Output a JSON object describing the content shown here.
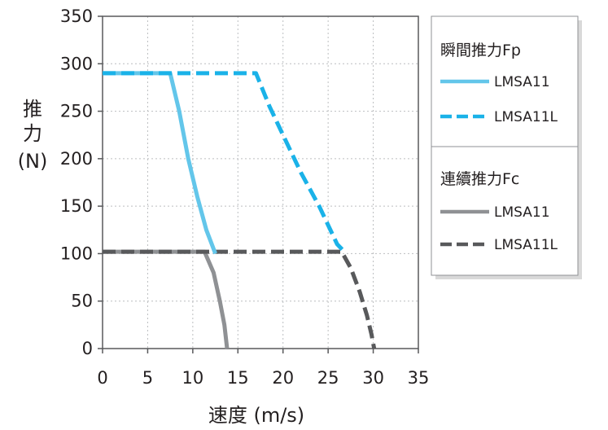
{
  "chart_data": {
    "type": "line",
    "xlabel": "速度 (m/s)",
    "ylabel_chars": [
      "推",
      "力",
      "(N)"
    ],
    "xlim": [
      0,
      35
    ],
    "ylim": [
      0,
      350
    ],
    "xticks": [
      0,
      5,
      10,
      15,
      20,
      25,
      30,
      35
    ],
    "yticks": [
      0,
      50,
      100,
      150,
      200,
      250,
      300,
      350
    ],
    "grid": true,
    "legend_position": "right",
    "legend_groups": [
      {
        "title": "瞬間推力Fp",
        "series_indices": [
          0,
          1
        ]
      },
      {
        "title": "連續推力Fc",
        "series_indices": [
          2,
          3
        ]
      }
    ],
    "series": [
      {
        "name": "LMSA11",
        "color": "#63c6ea",
        "dashed": false,
        "x": [
          0,
          7.5,
          8.5,
          9.5,
          10.5,
          11.5,
          12.5
        ],
        "y": [
          290,
          290,
          250,
          200,
          160,
          125,
          100
        ]
      },
      {
        "name": "LMSA11L",
        "color": "#1ab2e8",
        "dashed": true,
        "x": [
          0,
          17,
          18.5,
          20,
          22,
          24,
          26,
          27
        ],
        "y": [
          290,
          290,
          255,
          225,
          185,
          150,
          110,
          100
        ]
      },
      {
        "name": "LMSA11",
        "color": "#8f9194",
        "dashed": false,
        "x": [
          0,
          11.3,
          12.3,
          13,
          13.5,
          13.8
        ],
        "y": [
          102,
          102,
          80,
          50,
          25,
          0
        ]
      },
      {
        "name": "LMSA11L",
        "color": "#58595b",
        "dashed": true,
        "x": [
          0,
          26.5,
          27.5,
          28.5,
          29.3,
          29.8,
          30.1
        ],
        "y": [
          102,
          102,
          85,
          60,
          35,
          15,
          0
        ]
      }
    ]
  }
}
